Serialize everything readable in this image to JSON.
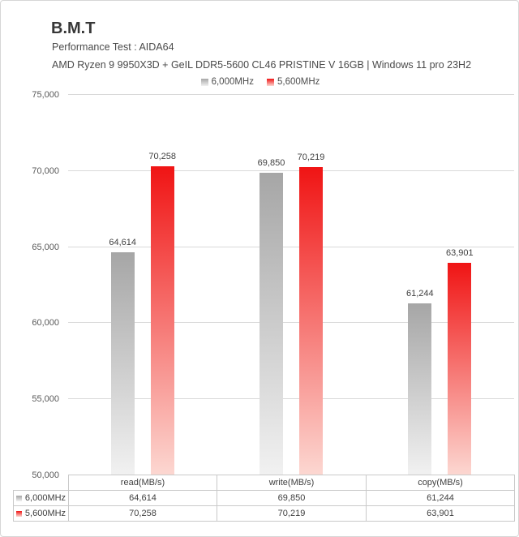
{
  "header": {
    "title": "B.M.T",
    "subtitle1": "Performance Test : AIDA64",
    "subtitle2": "AMD Ryzen 9 9950X3D + GeIL DDR5-5600 CL46 PRISTINE V 16GB | Windows 11 pro 23H2"
  },
  "chart_data": {
    "type": "bar",
    "categories": [
      "read(MB/s)",
      "write(MB/s)",
      "copy(MB/s)"
    ],
    "series": [
      {
        "name": "6,000MHz",
        "values": [
          64614,
          69850,
          61244
        ],
        "labels": [
          "64,614",
          "69,850",
          "61,244"
        ],
        "color": "#a6a6a6",
        "color_light": "#f1f1f1"
      },
      {
        "name": "5,600MHz",
        "values": [
          70258,
          70219,
          63901
        ],
        "labels": [
          "70,258",
          "70,219",
          "63,901"
        ],
        "color": "#f01414",
        "color_light": "#fcd7d1"
      }
    ],
    "ylim": [
      50000,
      75000
    ],
    "ytick_values": [
      75000,
      70000,
      65000,
      60000,
      55000,
      50000
    ],
    "ytick_labels": [
      "75,000",
      "70,000",
      "65,000",
      "60,000",
      "55,000",
      "50,000"
    ],
    "grid": true,
    "legend_position": "top-center",
    "data_table_shown": true
  },
  "table": {
    "col_headers": [
      "read(MB/s)",
      "write(MB/s)",
      "copy(MB/s)"
    ],
    "rows": [
      {
        "label": "6,000MHz",
        "values": [
          "64,614",
          "69,850",
          "61,244"
        ]
      },
      {
        "label": "5,600MHz",
        "values": [
          "70,258",
          "70,219",
          "63,901"
        ]
      }
    ]
  }
}
